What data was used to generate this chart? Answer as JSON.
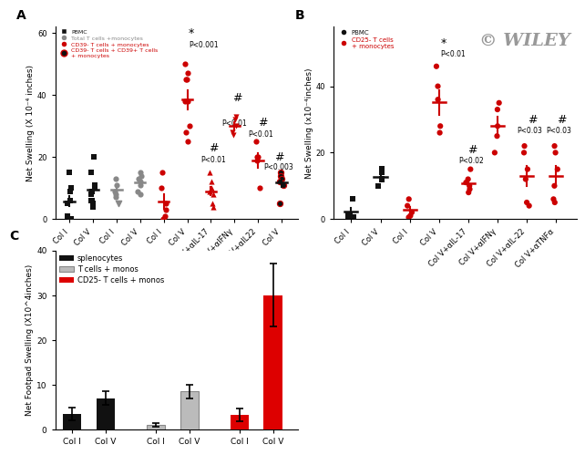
{
  "panel_A": {
    "title": "A",
    "ylabel": "Net Swelling (X 10⁻⁴ inches)",
    "ylim": [
      0,
      62
    ],
    "yticks": [
      0,
      20,
      40,
      60
    ],
    "xlabels": [
      "Col I",
      "Col V",
      "Col I",
      "Col V",
      "Col I",
      "Col V",
      "Col V+αIL-17",
      "Col V+αIFNγ",
      "Col V+αIL22",
      "Col V"
    ],
    "pbmc_col_i": [
      15,
      10,
      9,
      6,
      5,
      5,
      1,
      0.2,
      0.1
    ],
    "pbmc_col_v": [
      20,
      15,
      11,
      10,
      9,
      8,
      6,
      6,
      5,
      4
    ],
    "gray_col_i": [
      13,
      11,
      9,
      8,
      7
    ],
    "gray_col_v": [
      15,
      14,
      13,
      12,
      11,
      9,
      8
    ],
    "red_col_i": [
      15,
      10,
      5,
      3,
      1,
      0.2
    ],
    "red_col_v": [
      50,
      47,
      45,
      45,
      38,
      38,
      30,
      28,
      25
    ],
    "red_il17": [
      15,
      12,
      10,
      9,
      8,
      5,
      4
    ],
    "red_ifny": [
      33,
      32,
      30,
      28,
      27
    ],
    "red_il22": [
      25,
      20,
      20,
      19,
      10
    ],
    "red_col_v2": [
      15,
      14,
      13,
      12,
      11,
      5
    ]
  },
  "panel_B": {
    "title": "B",
    "ylabel": "Net Swelling (x10⁻⁴inches)",
    "ylim": [
      0,
      58
    ],
    "yticks": [
      0,
      20,
      40
    ],
    "xlabels": [
      "Col I",
      "Col V",
      "Col I",
      "Col V",
      "Col V+αIL-17",
      "Col V+αIFNγ",
      "Col V+αIL-22",
      "Col V+αTNFα"
    ],
    "pbmc_col_i": [
      6,
      1,
      1,
      0.5
    ],
    "pbmc_col_v": [
      15,
      14,
      12,
      10
    ],
    "red_col_i": [
      6,
      4,
      2,
      1,
      0.5
    ],
    "red_col_v": [
      46,
      40,
      36,
      28,
      26
    ],
    "red_il17": [
      15,
      12,
      11,
      10,
      9,
      8
    ],
    "red_ifny": [
      35,
      33,
      28,
      25,
      20
    ],
    "red_il22": [
      22,
      20,
      15,
      12,
      5,
      4
    ],
    "red_tnfa": [
      22,
      20,
      15,
      10,
      6,
      5
    ],
    "watermark": "© WILEY"
  },
  "panel_C": {
    "title": "C",
    "ylabel": "Net Footpad Swelling (X10^4inches)",
    "ylim": [
      0,
      40
    ],
    "yticks": [
      0,
      10,
      20,
      30,
      40
    ],
    "positions": [
      0,
      1,
      2.5,
      3.5,
      5,
      6
    ],
    "heights": [
      3.5,
      7.0,
      1.0,
      8.5,
      3.2,
      30.0
    ],
    "errors": [
      1.4,
      1.5,
      0.4,
      1.5,
      1.4,
      7.0
    ],
    "xlabels": [
      "Col I",
      "Col V",
      "Col I",
      "Col V",
      "Col I",
      "Col V"
    ],
    "bar_colors": [
      "#111111",
      "#111111",
      "#bbbbbb",
      "#bbbbbb",
      "#dd0000",
      "#dd0000"
    ],
    "edge_colors": [
      "none",
      "none",
      "#888888",
      "#888888",
      "none",
      "none"
    ],
    "legend_labels": [
      "splenocytes",
      "T cells + monos",
      "CD25- T cells + monos"
    ],
    "legend_colors": [
      "#111111",
      "#bbbbbb",
      "#dd0000"
    ],
    "legend_edges": [
      "none",
      "#888888",
      "none"
    ]
  }
}
